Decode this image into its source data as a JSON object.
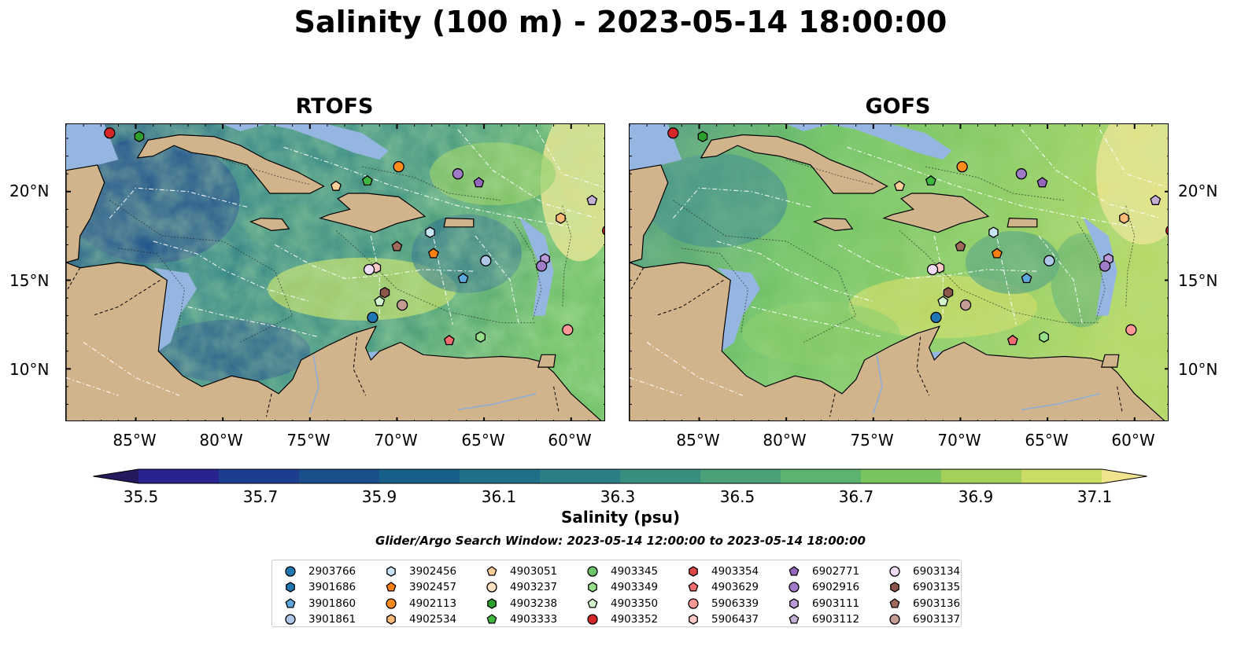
{
  "title": "Salinity (100 m) - 2023-05-14 18:00:00",
  "panels": [
    {
      "id": "rtofs",
      "title": "RTOFS"
    },
    {
      "id": "gofs",
      "title": "GOFS"
    }
  ],
  "lon_ticks": [
    "85°W",
    "80°W",
    "75°W",
    "70°W",
    "65°W",
    "60°W"
  ],
  "lat_ticks": [
    "20°N",
    "15°N",
    "10°N"
  ],
  "colorbar": {
    "label": "Salinity (psu)",
    "ticks": [
      "35.5",
      "35.7",
      "35.9",
      "36.1",
      "36.3",
      "36.5",
      "36.7",
      "36.9",
      "37.1"
    ],
    "colors": [
      "#26195e",
      "#28238f",
      "#1d3d8f",
      "#1a4f8c",
      "#17608a",
      "#1f6f88",
      "#2a7e85",
      "#37907f",
      "#4aa178",
      "#5cb36f",
      "#7ac45f",
      "#a3d05a",
      "#cadc63",
      "#f0e48e"
    ]
  },
  "search_window": "Glider/Argo Search Window: 2023-05-14 12:00:00 to 2023-05-14 18:00:00",
  "colors": {
    "ocean_blue": "#1e5a8e",
    "ocean_green": "#7ac45f",
    "land": "#d2b48c",
    "shelf": "#96b6e2"
  },
  "legend": [
    {
      "id": "2903766",
      "marker": "circle",
      "color": "#1f77b4"
    },
    {
      "id": "3901686",
      "marker": "hexagon",
      "color": "#1f77b4"
    },
    {
      "id": "3901860",
      "marker": "pentagon",
      "color": "#5fa8dc"
    },
    {
      "id": "3901861",
      "marker": "circle",
      "color": "#aec7e8"
    },
    {
      "id": "3902456",
      "marker": "hexagon",
      "color": "#c9e4f5"
    },
    {
      "id": "3902457",
      "marker": "pentagon",
      "color": "#ff7f0e"
    },
    {
      "id": "4902113",
      "marker": "circle",
      "color": "#ff8c1a"
    },
    {
      "id": "4902534",
      "marker": "hexagon",
      "color": "#ffbb78"
    },
    {
      "id": "4903051",
      "marker": "pentagon",
      "color": "#ffcf9a"
    },
    {
      "id": "4903237",
      "marker": "circle",
      "color": "#ffe3c4"
    },
    {
      "id": "4903238",
      "marker": "hexagon",
      "color": "#2ca02c"
    },
    {
      "id": "4903333",
      "marker": "pentagon",
      "color": "#3fb83f"
    },
    {
      "id": "4903345",
      "marker": "circle",
      "color": "#6cc46c"
    },
    {
      "id": "4903349",
      "marker": "hexagon",
      "color": "#98df8a"
    },
    {
      "id": "4903350",
      "marker": "pentagon",
      "color": "#d4f5cc"
    },
    {
      "id": "4903352",
      "marker": "circle",
      "color": "#d62728"
    },
    {
      "id": "4903354",
      "marker": "hexagon",
      "color": "#e0474a"
    },
    {
      "id": "4903629",
      "marker": "pentagon",
      "color": "#ee6b6e"
    },
    {
      "id": "5906339",
      "marker": "circle",
      "color": "#ff9896"
    },
    {
      "id": "5906437",
      "marker": "hexagon",
      "color": "#ffc9c7"
    },
    {
      "id": "6902771",
      "marker": "pentagon",
      "color": "#9467bd"
    },
    {
      "id": "6902916",
      "marker": "circle",
      "color": "#a07cc8"
    },
    {
      "id": "6903111",
      "marker": "hexagon",
      "color": "#b99ad8"
    },
    {
      "id": "6903112",
      "marker": "pentagon",
      "color": "#c5b0d5"
    },
    {
      "id": "6903134",
      "marker": "circle",
      "color": "#f0dcf7"
    },
    {
      "id": "6903135",
      "marker": "hexagon",
      "color": "#8c564b"
    },
    {
      "id": "6903136",
      "marker": "pentagon",
      "color": "#a06a5a"
    },
    {
      "id": "6903137",
      "marker": "circle",
      "color": "#c49c94"
    }
  ],
  "floats": [
    {
      "id": "4903352",
      "lon": -86.5,
      "lat": 23.3
    },
    {
      "id": "4903238",
      "lon": -84.8,
      "lat": 23.1
    },
    {
      "id": "4902113",
      "lon": -69.9,
      "lat": 21.4
    },
    {
      "id": "6902916",
      "lon": -66.5,
      "lat": 21.0
    },
    {
      "id": "6902771",
      "lon": -65.3,
      "lat": 20.5
    },
    {
      "id": "4903051",
      "lon": -73.5,
      "lat": 20.3
    },
    {
      "id": "4903333",
      "lon": -71.7,
      "lat": 20.6
    },
    {
      "id": "6903112",
      "lon": -58.8,
      "lat": 19.5
    },
    {
      "id": "4902534",
      "lon": -60.6,
      "lat": 18.5
    },
    {
      "id": "4903352",
      "lon": -57.9,
      "lat": 17.8
    },
    {
      "id": "3902456",
      "lon": -68.1,
      "lat": 17.7
    },
    {
      "id": "6903136",
      "lon": -70.0,
      "lat": 16.9
    },
    {
      "id": "3902457",
      "lon": -67.9,
      "lat": 16.5
    },
    {
      "id": "3901861",
      "lon": -64.9,
      "lat": 16.1
    },
    {
      "id": "6903111",
      "lon": -61.5,
      "lat": 16.2
    },
    {
      "id": "6902916",
      "lon": -61.7,
      "lat": 15.8
    },
    {
      "id": "5906437",
      "lon": -71.2,
      "lat": 15.7
    },
    {
      "id": "6903134",
      "lon": -71.6,
      "lat": 15.6
    },
    {
      "id": "3901860",
      "lon": -66.2,
      "lat": 15.1
    },
    {
      "id": "6903135",
      "lon": -70.7,
      "lat": 14.3
    },
    {
      "id": "4903350",
      "lon": -71.0,
      "lat": 13.8
    },
    {
      "id": "6903137",
      "lon": -69.7,
      "lat": 13.6
    },
    {
      "id": "2903766",
      "lon": -71.4,
      "lat": 12.9
    },
    {
      "id": "5906339",
      "lon": -60.2,
      "lat": 12.2
    },
    {
      "id": "4903349",
      "lon": -65.2,
      "lat": 11.8
    },
    {
      "id": "4903629",
      "lon": -67.0,
      "lat": 11.6
    }
  ]
}
